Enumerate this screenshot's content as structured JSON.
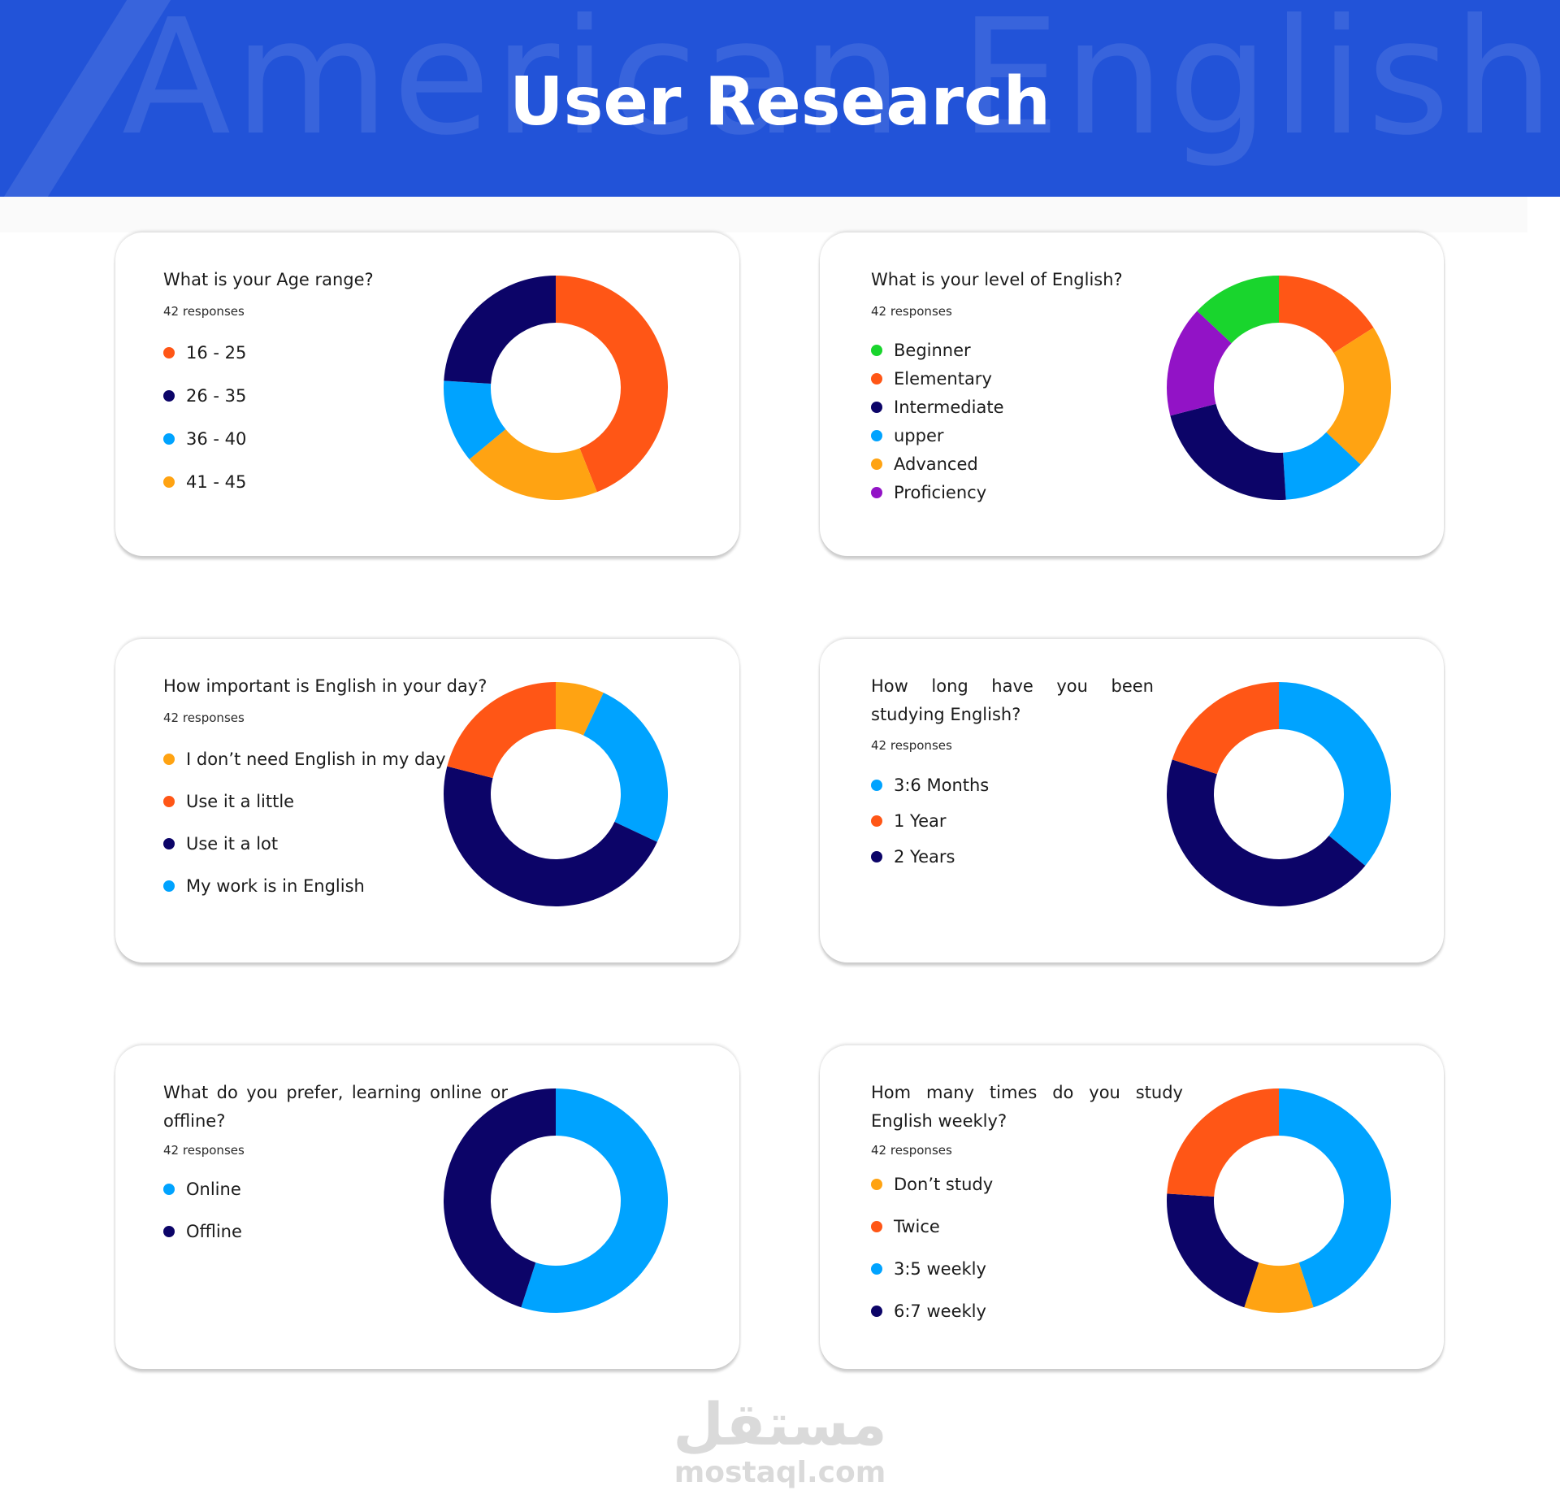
{
  "header": {
    "title": "User Research",
    "watermark": "American English",
    "background": "#2253d8"
  },
  "colors": {
    "orange_red": "#ff5616",
    "navy": "#0c0468",
    "sky": "#00a3ff",
    "amber": "#ffa312",
    "green": "#19d52d",
    "purple": "#9213c6"
  },
  "footer": {
    "logo_text": "مستقل",
    "site": "mostaql.com"
  },
  "chart_data": [
    {
      "type": "pie",
      "title": "What is your Age range?",
      "subtitle": "42 responses",
      "legend_position": "left",
      "categories": [
        "16 - 25",
        "26 - 35",
        "36 - 40",
        "41 - 45"
      ],
      "colors": [
        "#ff5616",
        "#0c0468",
        "#00a3ff",
        "#ffa312"
      ],
      "slice_order": [
        0,
        3,
        2,
        1
      ],
      "values": [
        44,
        24,
        12,
        20
      ]
    },
    {
      "type": "pie",
      "title": "What is your level of English?",
      "subtitle": "42 responses",
      "legend_position": "left",
      "categories": [
        "Beginner",
        "Elementary",
        "Intermediate",
        "upper",
        "Advanced",
        "Proficiency"
      ],
      "colors": [
        "#19d52d",
        "#ff5616",
        "#0c0468",
        "#00a3ff",
        "#ffa312",
        "#9213c6"
      ],
      "slice_order": [
        1,
        4,
        3,
        2,
        5,
        0
      ],
      "values": [
        13,
        16,
        22,
        12,
        21,
        16
      ]
    },
    {
      "type": "pie",
      "title": "How important is English in your day?",
      "subtitle": "42 responses",
      "legend_position": "left",
      "categories": [
        "I don’t need English in my day",
        "Use it a little",
        "Use it a lot",
        "My work is in English"
      ],
      "colors": [
        "#ffa312",
        "#ff5616",
        "#0c0468",
        "#00a3ff"
      ],
      "slice_order": [
        0,
        3,
        2,
        1
      ],
      "values": [
        7,
        21,
        47,
        25
      ]
    },
    {
      "type": "pie",
      "title": "How long have you been studying English?",
      "subtitle": "42 responses",
      "legend_position": "left",
      "categories": [
        "3:6 Months",
        "1 Year",
        "2 Years"
      ],
      "colors": [
        "#00a3ff",
        "#ff5616",
        "#0c0468"
      ],
      "slice_order": [
        0,
        2,
        1
      ],
      "values": [
        36,
        20,
        44
      ]
    },
    {
      "type": "pie",
      "title": "What do you prefer, learning online or offline?",
      "subtitle": "42 responses",
      "legend_position": "left",
      "categories": [
        "Online",
        "Offline"
      ],
      "colors": [
        "#00a3ff",
        "#0c0468"
      ],
      "slice_order": [
        0,
        1
      ],
      "values": [
        55,
        45
      ]
    },
    {
      "type": "pie",
      "title": "Hom many times do you study English weekly?",
      "subtitle": "42 responses",
      "legend_position": "left",
      "categories": [
        "Don’t study",
        "Twice",
        "3:5 weekly",
        "6:7 weekly"
      ],
      "colors": [
        "#ffa312",
        "#ff5616",
        "#00a3ff",
        "#0c0468"
      ],
      "slice_order": [
        2,
        0,
        3,
        1
      ],
      "values": [
        10,
        24,
        45,
        21
      ]
    }
  ]
}
